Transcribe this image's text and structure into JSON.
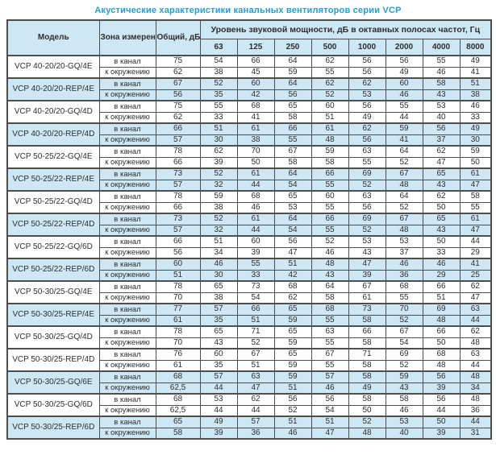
{
  "title": "Акустические характеристики канальных вентиляторов  серии VCP",
  "colors": {
    "accent_title": "#1f9ed9",
    "header_bg": "#cde7f5",
    "row_shade": "#cde7f5",
    "border": "#4d4d4d"
  },
  "table": {
    "col_model": "Модель",
    "col_zone": "Зона измерения",
    "col_total": "Общий, дБА",
    "freq_group_header": "Уровень звуковой мощности, дБ в октавных полосах частот, Гц",
    "freqs": [
      "63",
      "125",
      "250",
      "500",
      "1000",
      "2000",
      "4000",
      "8000"
    ],
    "zone_in_label": "в канал",
    "zone_out_label": "к окружению",
    "rows": [
      {
        "model": "VCP 40-20/20-GQ/4E",
        "shaded": false,
        "in": {
          "total": "75",
          "bands": [
            "54",
            "66",
            "64",
            "62",
            "56",
            "56",
            "55",
            "49"
          ]
        },
        "out": {
          "total": "62",
          "bands": [
            "38",
            "45",
            "59",
            "55",
            "56",
            "49",
            "46",
            "41"
          ]
        }
      },
      {
        "model": "VCP 40-20/20-REP/4E",
        "shaded": true,
        "in": {
          "total": "67",
          "bands": [
            "52",
            "60",
            "64",
            "62",
            "62",
            "60",
            "58",
            "51"
          ]
        },
        "out": {
          "total": "56",
          "bands": [
            "35",
            "42",
            "56",
            "52",
            "53",
            "46",
            "43",
            "38"
          ]
        }
      },
      {
        "model": "VCP 40-20/20-GQ/4D",
        "shaded": false,
        "in": {
          "total": "75",
          "bands": [
            "55",
            "68",
            "65",
            "60",
            "56",
            "55",
            "53",
            "46"
          ]
        },
        "out": {
          "total": "62",
          "bands": [
            "33",
            "41",
            "58",
            "51",
            "49",
            "44",
            "40",
            "33"
          ]
        }
      },
      {
        "model": "VCP 40-20/20-REP/4D",
        "shaded": true,
        "in": {
          "total": "66",
          "bands": [
            "51",
            "61",
            "66",
            "61",
            "62",
            "59",
            "56",
            "49"
          ]
        },
        "out": {
          "total": "57",
          "bands": [
            "30",
            "38",
            "55",
            "48",
            "56",
            "41",
            "37",
            "30"
          ]
        }
      },
      {
        "model": "VCP 50-25/22-GQ/4E",
        "shaded": false,
        "in": {
          "total": "78",
          "bands": [
            "62",
            "70",
            "67",
            "59",
            "63",
            "64",
            "62",
            "59"
          ]
        },
        "out": {
          "total": "66",
          "bands": [
            "39",
            "50",
            "58",
            "58",
            "55",
            "52",
            "47",
            "50"
          ]
        }
      },
      {
        "model": "VCP 50-25/22-REP/4E",
        "shaded": true,
        "in": {
          "total": "73",
          "bands": [
            "52",
            "61",
            "64",
            "66",
            "69",
            "67",
            "65",
            "61"
          ]
        },
        "out": {
          "total": "57",
          "bands": [
            "32",
            "44",
            "54",
            "55",
            "52",
            "48",
            "43",
            "47"
          ]
        }
      },
      {
        "model": "VCP 50-25/22-GQ/4D",
        "shaded": false,
        "in": {
          "total": "78",
          "bands": [
            "59",
            "68",
            "65",
            "60",
            "63",
            "64",
            "62",
            "58"
          ]
        },
        "out": {
          "total": "66",
          "bands": [
            "38",
            "46",
            "53",
            "55",
            "56",
            "52",
            "50",
            "55"
          ]
        }
      },
      {
        "model": "VCP 50-25/22-REP/4D",
        "shaded": true,
        "in": {
          "total": "73",
          "bands": [
            "52",
            "61",
            "64",
            "66",
            "69",
            "67",
            "65",
            "61"
          ]
        },
        "out": {
          "total": "57",
          "bands": [
            "32",
            "44",
            "54",
            "55",
            "52",
            "48",
            "43",
            "47"
          ]
        }
      },
      {
        "model": "VCP 50-25/22-GQ/6D",
        "shaded": false,
        "in": {
          "total": "66",
          "bands": [
            "51",
            "60",
            "56",
            "52",
            "53",
            "53",
            "50",
            "44"
          ]
        },
        "out": {
          "total": "56",
          "bands": [
            "34",
            "39",
            "47",
            "46",
            "43",
            "37",
            "33",
            "29"
          ]
        }
      },
      {
        "model": "VCP 50-25/22-REP/6D",
        "shaded": true,
        "in": {
          "total": "60",
          "bands": [
            "46",
            "55",
            "51",
            "48",
            "47",
            "46",
            "46",
            "41"
          ]
        },
        "out": {
          "total": "51",
          "bands": [
            "30",
            "33",
            "42",
            "43",
            "39",
            "36",
            "29",
            "25"
          ]
        }
      },
      {
        "model": "VCP 50-30/25-GQ/4E",
        "shaded": false,
        "in": {
          "total": "78",
          "bands": [
            "65",
            "73",
            "68",
            "64",
            "67",
            "68",
            "66",
            "62"
          ]
        },
        "out": {
          "total": "70",
          "bands": [
            "38",
            "54",
            "62",
            "58",
            "61",
            "55",
            "51",
            "47"
          ]
        }
      },
      {
        "model": "VCP 50-30/25-REP/4E",
        "shaded": true,
        "in": {
          "total": "77",
          "bands": [
            "57",
            "66",
            "65",
            "68",
            "73",
            "70",
            "69",
            "63"
          ]
        },
        "out": {
          "total": "61",
          "bands": [
            "35",
            "51",
            "59",
            "55",
            "58",
            "52",
            "48",
            "44"
          ]
        }
      },
      {
        "model": "VCP 50-30/25-GQ/4D",
        "shaded": false,
        "in": {
          "total": "78",
          "bands": [
            "65",
            "71",
            "65",
            "63",
            "66",
            "67",
            "66",
            "62"
          ]
        },
        "out": {
          "total": "70",
          "bands": [
            "43",
            "52",
            "59",
            "55",
            "58",
            "54",
            "50",
            "48"
          ]
        }
      },
      {
        "model": "VCP 50-30/25-REP/4D",
        "shaded": false,
        "in": {
          "total": "76",
          "bands": [
            "60",
            "67",
            "65",
            "67",
            "71",
            "69",
            "68",
            "63"
          ]
        },
        "out": {
          "total": "61",
          "bands": [
            "35",
            "51",
            "59",
            "55",
            "58",
            "52",
            "48",
            "44"
          ]
        }
      },
      {
        "model": "VCP 50-30/25-GQ/6E",
        "shaded": true,
        "in": {
          "total": "68",
          "bands": [
            "57",
            "63",
            "59",
            "57",
            "58",
            "59",
            "56",
            "48"
          ]
        },
        "out": {
          "total": "62,5",
          "bands": [
            "44",
            "47",
            "51",
            "46",
            "49",
            "43",
            "39",
            "34"
          ]
        }
      },
      {
        "model": "VCP 50-30/25-GQ/6D",
        "shaded": false,
        "in": {
          "total": "68",
          "bands": [
            "53",
            "62",
            "56",
            "56",
            "58",
            "58",
            "56",
            "48"
          ]
        },
        "out": {
          "total": "62,5",
          "bands": [
            "44",
            "44",
            "52",
            "54",
            "50",
            "46",
            "44",
            "36"
          ]
        }
      },
      {
        "model": "VCP 50-30/25-REP/6D",
        "shaded": true,
        "in": {
          "total": "65",
          "bands": [
            "49",
            "57",
            "51",
            "51",
            "52",
            "53",
            "50",
            "44"
          ]
        },
        "out": {
          "total": "58",
          "bands": [
            "39",
            "36",
            "46",
            "47",
            "48",
            "40",
            "39",
            "31"
          ]
        }
      }
    ]
  }
}
